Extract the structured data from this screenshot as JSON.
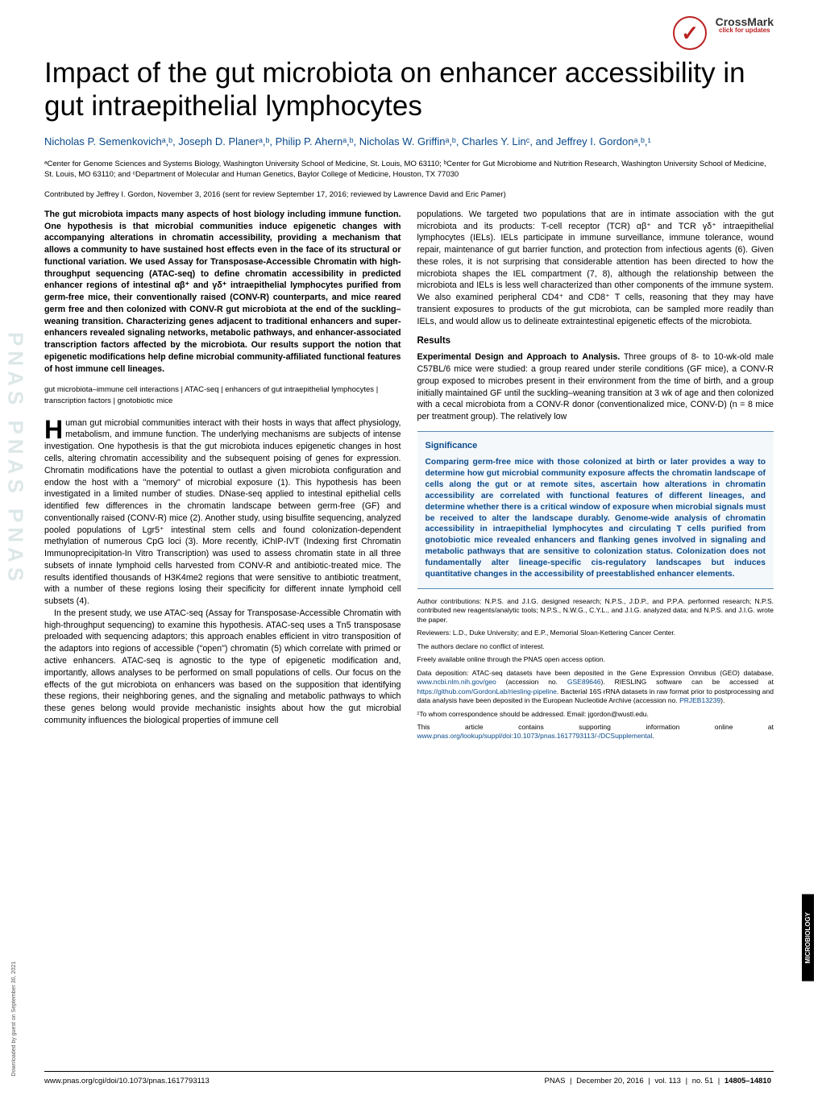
{
  "crossmark": {
    "label": "CrossMark",
    "sub": "click for updates"
  },
  "sidebar_logo": "PNAS  PNAS  PNAS",
  "title": "Impact of the gut microbiota on enhancer accessibility in gut intraepithelial lymphocytes",
  "authors": "Nicholas P. Semenkovichᵃ,ᵇ, Joseph D. Planerᵃ,ᵇ, Philip P. Ahernᵃ,ᵇ, Nicholas W. Griffinᵃ,ᵇ, Charles Y. Linᶜ, and Jeffrey I. Gordonᵃ,ᵇ,¹",
  "affiliations": "ᵃCenter for Genome Sciences and Systems Biology, Washington University School of Medicine, St. Louis, MO 63110; ᵇCenter for Gut Microbiome and Nutrition Research, Washington University School of Medicine, St. Louis, MO 63110; and ᶜDepartment of Molecular and Human Genetics, Baylor College of Medicine, Houston, TX 77030",
  "contributed": "Contributed by Jeffrey I. Gordon, November 3, 2016 (sent for review September 17, 2016; reviewed by Lawrence David and Eric Pamer)",
  "abstract": "The gut microbiota impacts many aspects of host biology including immune function. One hypothesis is that microbial communities induce epigenetic changes with accompanying alterations in chromatin accessibility, providing a mechanism that allows a community to have sustained host effects even in the face of its structural or functional variation. We used Assay for Transposase-Accessible Chromatin with high-throughput sequencing (ATAC-seq) to define chromatin accessibility in predicted enhancer regions of intestinal αβ⁺ and γδ⁺ intraepithelial lymphocytes purified from germ-free mice, their conventionally raised (CONV-R) counterparts, and mice reared germ free and then colonized with CONV-R gut microbiota at the end of the suckling–weaning transition. Characterizing genes adjacent to traditional enhancers and super-enhancers revealed signaling networks, metabolic pathways, and enhancer-associated transcription factors affected by the microbiota. Our results support the notion that epigenetic modifications help define microbial community-affiliated functional features of host immune cell lineages.",
  "keywords": "gut microbiota–immune cell interactions | ATAC-seq | enhancers of gut intraepithelial lymphocytes | transcription factors | gnotobiotic mice",
  "col1_p1_first": "H",
  "col1_p1": "uman gut microbial communities interact with their hosts in ways that affect physiology, metabolism, and immune function. The underlying mechanisms are subjects of intense investigation. One hypothesis is that the gut microbiota induces epigenetic changes in host cells, altering chromatin accessibility and the subsequent poising of genes for expression. Chromatin modifications have the potential to outlast a given microbiota configuration and endow the host with a \"memory\" of microbial exposure (1). This hypothesis has been investigated in a limited number of studies. DNase-seq applied to intestinal epithelial cells identified few differences in the chromatin landscape between germ-free (GF) and conventionally raised (CONV-R) mice (2). Another study, using bisulfite sequencing, analyzed pooled populations of Lgr5⁺ intestinal stem cells and found colonization-dependent methylation of numerous CpG loci (3). More recently, iChIP-IVT (Indexing first Chromatin Immunoprecipitation-In Vitro Transcription) was used to assess chromatin state in all three subsets of innate lymphoid cells harvested from CONV-R and antibiotic-treated mice. The results identified thousands of H3K4me2 regions that were sensitive to antibiotic treatment, with a number of these regions losing their specificity for different innate lymphoid cell subsets (4).",
  "col1_p2": "In the present study, we use ATAC-seq (Assay for Transposase-Accessible Chromatin with high-throughput sequencing) to examine this hypothesis. ATAC-seq uses a Tn5 transposase preloaded with sequencing adaptors; this approach enables efficient in vitro transposition of the adaptors into regions of accessible (\"open\") chromatin (5) which correlate with primed or active enhancers. ATAC-seq is agnostic to the type of epigenetic modification and, importantly, allows analyses to be performed on small populations of cells. Our focus on the effects of the gut microbiota on enhancers was based on the supposition that identifying these regions, their neighboring genes, and the signaling and metabolic pathways to which these genes belong would provide mechanistic insights about how the gut microbial community influences the biological properties of immune cell",
  "col2_p1": "populations. We targeted two populations that are in intimate association with the gut microbiota and its products: T-cell receptor (TCR) αβ⁺ and TCR γδ⁺ intraepithelial lymphocytes (IELs). IELs participate in immune surveillance, immune tolerance, wound repair, maintenance of gut barrier function, and protection from infectious agents (6). Given these roles, it is not surprising that considerable attention has been directed to how the microbiota shapes the IEL compartment (7, 8), although the relationship between the microbiota and IELs is less well characterized than other components of the immune system. We also examined peripheral CD4⁺ and CD8⁺ T cells, reasoning that they may have transient exposures to products of the gut microbiota, can be sampled more readily than IELs, and would allow us to delineate extraintestinal epigenetic effects of the microbiota.",
  "results_head": "Results",
  "col2_subhead": "Experimental Design and Approach to Analysis.",
  "col2_p2": " Three groups of 8- to 10-wk-old male C57BL/6 mice were studied: a group reared under sterile conditions (GF mice), a CONV-R group exposed to microbes present in their environment from the time of birth, and a group initially maintained GF until the suckling–weaning transition at 3 wk of age and then colonized with a cecal microbiota from a CONV-R donor (conventionalized mice, CONV-D) (n = 8 mice per treatment group). The relatively low",
  "significance_title": "Significance",
  "significance_text": "Comparing germ-free mice with those colonized at birth or later provides a way to determine how gut microbial community exposure affects the chromatin landscape of cells along the gut or at remote sites, ascertain how alterations in chromatin accessibility are correlated with functional features of different lineages, and determine whether there is a critical window of exposure when microbial signals must be received to alter the landscape durably. Genome-wide analysis of chromatin accessibility in intraepithelial lymphocytes and circulating T cells purified from gnotobiotic mice revealed enhancers and flanking genes involved in signaling and metabolic pathways that are sensitive to colonization status. Colonization does not fundamentally alter lineage-specific cis-regulatory landscapes but induces quantitative changes in the accessibility of preestablished enhancer elements.",
  "footnotes": {
    "f1": "Author contributions: N.P.S. and J.I.G. designed research; N.P.S., J.D.P., and P.P.A. performed research; N.P.S. contributed new reagents/analytic tools; N.P.S., N.W.G., C.Y.L., and J.I.G. analyzed data; and N.P.S. and J.I.G. wrote the paper.",
    "f2": "Reviewers: L.D., Duke University; and E.P., Memorial Sloan-Kettering Cancer Center.",
    "f3": "The authors declare no conflict of interest.",
    "f4": "Freely available online through the PNAS open access option.",
    "f5a": "Data deposition: ATAC-seq datasets have been deposited in the Gene Expression Omnibus (GEO) database, ",
    "f5link1": "www.ncbi.nlm.nih.gov/geo",
    "f5b": " (accession no. ",
    "f5link2": "GSE89646",
    "f5c": "). RIESLING software can be accessed at ",
    "f5link3": "https://github.com/GordonLab/riesling-pipeline",
    "f5d": ". Bacterial 16S rRNA datasets in raw format prior to postprocessing and data analysis have been deposited in the European Nucleotide Archive (accession no. ",
    "f5link4": "PRJEB13239",
    "f5e": ").",
    "f6": "¹To whom correspondence should be addressed. Email: jgordon@wustl.edu.",
    "f7a": "This article contains supporting information online at ",
    "f7link": "www.pnas.org/lookup/suppl/doi:10.1073/pnas.1617793113/-/DCSupplemental",
    "f7b": "."
  },
  "side_label": "MICROBIOLOGY",
  "download": "Downloaded by guest on September 30, 2021",
  "footer": {
    "left": "www.pnas.org/cgi/doi/10.1073/pnas.1617793113",
    "pnas": "PNAS",
    "date": "December 20, 2016",
    "vol": "vol. 113",
    "no": "no. 51",
    "pages": "14805–14810"
  }
}
